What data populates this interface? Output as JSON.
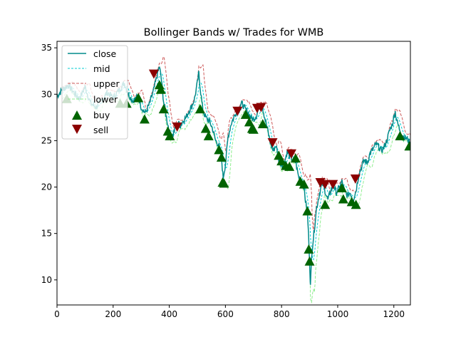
{
  "chart_data": {
    "type": "line",
    "title": "Bollinger Bands w/ Trades for WMB",
    "xlabel": "",
    "ylabel": "",
    "xlim": [
      0,
      1259
    ],
    "ylim": [
      7.3,
      35.7
    ],
    "xticks": [
      0,
      200,
      400,
      600,
      800,
      1000,
      1200
    ],
    "yticks": [
      10,
      15,
      20,
      25,
      30,
      35
    ],
    "grid": false,
    "legend_placement": "upper-left",
    "legend": [
      "close",
      "mid",
      "upper",
      "lower",
      "buy",
      "sell"
    ],
    "colors": {
      "close": "#008b8b",
      "mid": "#00ced1",
      "upper": "#cd5c5c",
      "lower": "#90ee90",
      "buy": "#006400",
      "sell": "#8b0000"
    },
    "close_points": [
      [
        0,
        29.8
      ],
      [
        20,
        30.5
      ],
      [
        40,
        31.0
      ],
      [
        60,
        30.2
      ],
      [
        80,
        29.5
      ],
      [
        100,
        30.8
      ],
      [
        120,
        29.0
      ],
      [
        140,
        28.6
      ],
      [
        160,
        29.4
      ],
      [
        180,
        30.2
      ],
      [
        200,
        29.6
      ],
      [
        220,
        30.4
      ],
      [
        240,
        31.2
      ],
      [
        255,
        30.0
      ],
      [
        270,
        29.3
      ],
      [
        290,
        29.8
      ],
      [
        300,
        28.6
      ],
      [
        315,
        28.0
      ],
      [
        330,
        29.0
      ],
      [
        345,
        30.5
      ],
      [
        355,
        31.8
      ],
      [
        365,
        33.0
      ],
      [
        372,
        31.5
      ],
      [
        380,
        29.2
      ],
      [
        390,
        27.5
      ],
      [
        400,
        26.0
      ],
      [
        410,
        25.3
      ],
      [
        420,
        26.3
      ],
      [
        430,
        27.0
      ],
      [
        440,
        26.6
      ],
      [
        450,
        27.2
      ],
      [
        460,
        27.5
      ],
      [
        470,
        28.2
      ],
      [
        480,
        28.7
      ],
      [
        490,
        29.5
      ],
      [
        500,
        31.2
      ],
      [
        505,
        32.3
      ],
      [
        512,
        30.2
      ],
      [
        520,
        28.2
      ],
      [
        530,
        27.5
      ],
      [
        545,
        27.0
      ],
      [
        555,
        26.2
      ],
      [
        565,
        25.0
      ],
      [
        575,
        24.6
      ],
      [
        585,
        23.5
      ],
      [
        592,
        21.0
      ],
      [
        600,
        22.5
      ],
      [
        610,
        25.5
      ],
      [
        620,
        26.8
      ],
      [
        630,
        27.5
      ],
      [
        640,
        28.2
      ],
      [
        650,
        28.7
      ],
      [
        660,
        29.0
      ],
      [
        670,
        28.4
      ],
      [
        680,
        28.1
      ],
      [
        690,
        27.5
      ],
      [
        700,
        27.3
      ],
      [
        710,
        27.7
      ],
      [
        720,
        28.6
      ],
      [
        730,
        28.9
      ],
      [
        740,
        27.5
      ],
      [
        750,
        26.2
      ],
      [
        760,
        24.8
      ],
      [
        770,
        23.9
      ],
      [
        780,
        24.5
      ],
      [
        790,
        23.0
      ],
      [
        800,
        22.4
      ],
      [
        810,
        22.6
      ],
      [
        820,
        23.8
      ],
      [
        830,
        23.2
      ],
      [
        840,
        22.9
      ],
      [
        850,
        22.7
      ],
      [
        860,
        21.2
      ],
      [
        870,
        20.6
      ],
      [
        880,
        20.0
      ],
      [
        885,
        18.5
      ],
      [
        892,
        17.5
      ],
      [
        898,
        13.5
      ],
      [
        903,
        9.3
      ],
      [
        908,
        13.0
      ],
      [
        915,
        15.0
      ],
      [
        925,
        17.8
      ],
      [
        935,
        19.3
      ],
      [
        945,
        20.4
      ],
      [
        955,
        19.6
      ],
      [
        965,
        18.6
      ],
      [
        975,
        19.6
      ],
      [
        985,
        20.2
      ],
      [
        995,
        19.4
      ],
      [
        1005,
        19.9
      ],
      [
        1015,
        20.6
      ],
      [
        1025,
        19.5
      ],
      [
        1035,
        19.1
      ],
      [
        1045,
        19.4
      ],
      [
        1055,
        18.6
      ],
      [
        1065,
        19.6
      ],
      [
        1075,
        21.3
      ],
      [
        1085,
        22.2
      ],
      [
        1095,
        22.9
      ],
      [
        1105,
        22.6
      ],
      [
        1115,
        23.6
      ],
      [
        1125,
        24.0
      ],
      [
        1135,
        24.6
      ],
      [
        1145,
        24.4
      ],
      [
        1155,
        23.9
      ],
      [
        1165,
        24.3
      ],
      [
        1175,
        25.0
      ],
      [
        1185,
        26.1
      ],
      [
        1195,
        26.8
      ],
      [
        1200,
        27.6
      ],
      [
        1205,
        28.1
      ],
      [
        1212,
        27.0
      ],
      [
        1220,
        26.3
      ],
      [
        1230,
        25.6
      ],
      [
        1240,
        25.3
      ],
      [
        1250,
        25.1
      ],
      [
        1259,
        24.6
      ]
    ],
    "buy_points": [
      [
        35,
        29.5
      ],
      [
        225,
        29.0
      ],
      [
        248,
        29.0
      ],
      [
        290,
        29.6
      ],
      [
        312,
        27.3
      ],
      [
        365,
        31.0
      ],
      [
        370,
        30.5
      ],
      [
        380,
        28.4
      ],
      [
        395,
        26.0
      ],
      [
        402,
        25.5
      ],
      [
        510,
        28.4
      ],
      [
        530,
        26.3
      ],
      [
        540,
        25.5
      ],
      [
        577,
        24.0
      ],
      [
        586,
        23.2
      ],
      [
        590,
        20.5
      ],
      [
        595,
        20.4
      ],
      [
        672,
        27.8
      ],
      [
        685,
        27.0
      ],
      [
        695,
        26.3
      ],
      [
        700,
        26.2
      ],
      [
        733,
        26.8
      ],
      [
        790,
        23.4
      ],
      [
        800,
        22.8
      ],
      [
        815,
        22.3
      ],
      [
        828,
        22.2
      ],
      [
        850,
        23.1
      ],
      [
        867,
        20.6
      ],
      [
        880,
        20.3
      ],
      [
        892,
        17.4
      ],
      [
        897,
        13.3
      ],
      [
        900,
        12.0
      ],
      [
        955,
        18.1
      ],
      [
        1015,
        19.9
      ],
      [
        1020,
        18.7
      ],
      [
        1050,
        18.4
      ],
      [
        1065,
        18.1
      ],
      [
        1222,
        25.5
      ],
      [
        1255,
        24.4
      ]
    ],
    "sell_points": [
      [
        345,
        32.2
      ],
      [
        428,
        26.5
      ],
      [
        643,
        28.2
      ],
      [
        713,
        28.5
      ],
      [
        727,
        28.6
      ],
      [
        768,
        24.8
      ],
      [
        835,
        23.6
      ],
      [
        938,
        20.5
      ],
      [
        955,
        20.3
      ],
      [
        983,
        20.3
      ],
      [
        1063,
        20.9
      ]
    ]
  }
}
